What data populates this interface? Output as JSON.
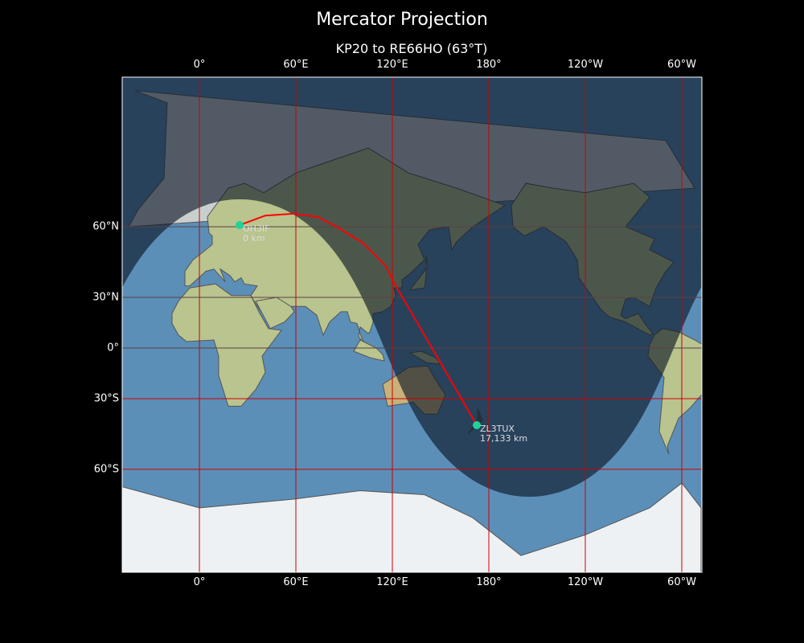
{
  "title": "Mercator Projection",
  "subtitle": "KP20 to RE66HO (63°T)",
  "axes": {
    "lon_ticks": [
      {
        "lon": 0,
        "label": "0°"
      },
      {
        "lon": 60,
        "label": "60°E"
      },
      {
        "lon": 120,
        "label": "120°E"
      },
      {
        "lon": 180,
        "label": "180°"
      },
      {
        "lon": 240,
        "label": "120°W"
      },
      {
        "lon": 300,
        "label": "60°W"
      }
    ],
    "lat_ticks": [
      {
        "lat": 60,
        "label": "60°N"
      },
      {
        "lat": 30,
        "label": "30°N"
      },
      {
        "lat": 0,
        "label": "0°"
      },
      {
        "lat": -30,
        "label": "30°S"
      },
      {
        "lat": -60,
        "label": "60°S"
      }
    ],
    "lon_range": [
      -48,
      312
    ],
    "gridline_color": "#cc0000"
  },
  "stations": [
    {
      "call": "OH3IF",
      "distance": "0 km",
      "lat": 60.5,
      "lon": 25
    },
    {
      "call": "ZL3TUX",
      "distance": "17,133 km",
      "lat": -43.2,
      "lon": 172.5
    }
  ],
  "path": {
    "color": "#ff0000",
    "points": [
      [
        60.5,
        25
      ],
      [
        63.3,
        41
      ],
      [
        63.8,
        58.5
      ],
      [
        62.9,
        73.5
      ],
      [
        59.8,
        86
      ],
      [
        54.4,
        102
      ],
      [
        45.3,
        116
      ],
      [
        39,
        120
      ],
      [
        -43.2,
        172.5
      ]
    ]
  },
  "colors": {
    "ocean": "#5b8fb8",
    "land": "#b9c48e",
    "marker": "#1fd39a",
    "night": "rgba(10,20,35,0.62)"
  }
}
